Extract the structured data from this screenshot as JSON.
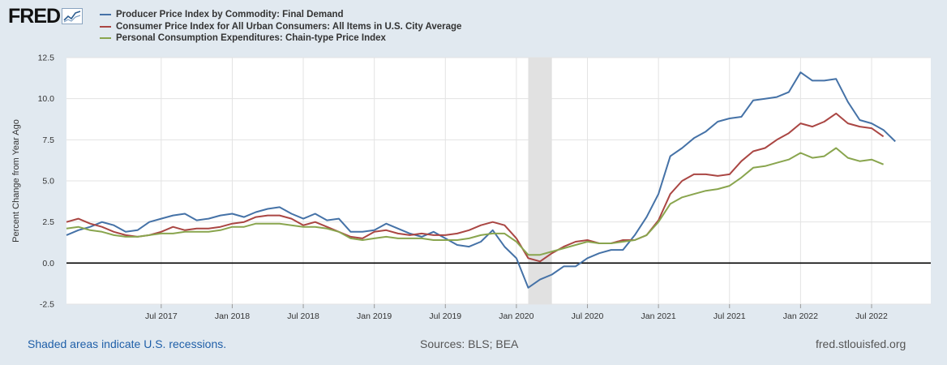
{
  "logo": {
    "text": "FRED"
  },
  "colors": {
    "background": "#e1e9f0",
    "plot_bg": "#ffffff",
    "recession": "#e1e1e1",
    "grid": "#e3e3e3",
    "ppi": "#4572a7",
    "cpi": "#aa4643",
    "pce": "#89a54e",
    "zero_line": "#000000"
  },
  "footer": {
    "note": "Shaded areas indicate U.S. recessions.",
    "sources": "Sources: BLS; BEA",
    "url": "fred.stlouisfed.org"
  },
  "chart_data": {
    "type": "line",
    "title": "",
    "xlabel": "",
    "ylabel": "Percent Change from Year Ago",
    "ylim": [
      -2.5,
      12.5
    ],
    "yticks": [
      "12.5",
      "10.0",
      "7.5",
      "5.0",
      "2.5",
      "0.0",
      "-2.5"
    ],
    "ytick_values": [
      12.5,
      10.0,
      7.5,
      5.0,
      2.5,
      0.0,
      -2.5
    ],
    "x_start": "2016-11",
    "x_end": "2022-12",
    "x_unit": "months since 2016-11",
    "xlim": [
      0,
      73
    ],
    "xticks": [
      {
        "label": "Jul 2017",
        "month": 8
      },
      {
        "label": "Jan 2018",
        "month": 14
      },
      {
        "label": "Jul 2018",
        "month": 20
      },
      {
        "label": "Jan 2019",
        "month": 26
      },
      {
        "label": "Jul 2019",
        "month": 32
      },
      {
        "label": "Jan 2020",
        "month": 38
      },
      {
        "label": "Jul 2020",
        "month": 44
      },
      {
        "label": "Jan 2021",
        "month": 50
      },
      {
        "label": "Jul 2021",
        "month": 56
      },
      {
        "label": "Jan 2022",
        "month": 62
      },
      {
        "label": "Jul 2022",
        "month": 68
      }
    ],
    "recession": {
      "start_month": 39,
      "end_month": 41
    },
    "series": [
      {
        "name": "Producer Price Index by Commodity: Final Demand",
        "key": "ppi",
        "start_month": 0,
        "values": [
          1.7,
          2.0,
          2.2,
          2.5,
          2.3,
          1.9,
          2.0,
          2.5,
          2.7,
          2.9,
          3.0,
          2.6,
          2.7,
          2.9,
          3.0,
          2.8,
          3.1,
          3.3,
          3.4,
          3.0,
          2.7,
          3.0,
          2.6,
          2.7,
          1.9,
          1.9,
          2.0,
          2.4,
          2.1,
          1.8,
          1.6,
          1.9,
          1.5,
          1.1,
          1.0,
          1.3,
          2.0,
          1.0,
          0.3,
          -1.5,
          -1.0,
          -0.7,
          -0.2,
          -0.2,
          0.3,
          0.6,
          0.8,
          0.8,
          1.7,
          2.8,
          4.2,
          6.5,
          7.0,
          7.6,
          8.0,
          8.6,
          8.8,
          8.9,
          9.9,
          10.0,
          10.1,
          10.4,
          11.6,
          11.1,
          11.1,
          11.2,
          9.8,
          8.7,
          8.5,
          8.1,
          7.4
        ]
      },
      {
        "name": "Consumer Price Index for All Urban Consumers: All Items in U.S. City Average",
        "key": "cpi",
        "start_month": 0,
        "values": [
          2.5,
          2.7,
          2.4,
          2.2,
          1.9,
          1.7,
          1.6,
          1.7,
          1.9,
          2.2,
          2.0,
          2.1,
          2.1,
          2.2,
          2.4,
          2.5,
          2.8,
          2.9,
          2.9,
          2.7,
          2.3,
          2.5,
          2.2,
          1.9,
          1.6,
          1.5,
          1.9,
          2.0,
          1.8,
          1.7,
          1.8,
          1.7,
          1.7,
          1.8,
          2.0,
          2.3,
          2.5,
          2.3,
          1.5,
          0.3,
          0.1,
          0.6,
          1.0,
          1.3,
          1.4,
          1.2,
          1.2,
          1.4,
          1.4,
          1.7,
          2.6,
          4.2,
          5.0,
          5.4,
          5.4,
          5.3,
          5.4,
          6.2,
          6.8,
          7.0,
          7.5,
          7.9,
          8.5,
          8.3,
          8.6,
          9.1,
          8.5,
          8.3,
          8.2,
          7.7
        ]
      },
      {
        "name": "Personal Consumption Expenditures: Chain-type Price Index",
        "key": "pce",
        "start_month": 0,
        "values": [
          2.1,
          2.2,
          2.0,
          1.9,
          1.7,
          1.6,
          1.6,
          1.7,
          1.8,
          1.8,
          1.9,
          1.9,
          1.9,
          2.0,
          2.2,
          2.2,
          2.4,
          2.4,
          2.4,
          2.3,
          2.2,
          2.2,
          2.1,
          1.9,
          1.5,
          1.4,
          1.5,
          1.6,
          1.5,
          1.5,
          1.5,
          1.4,
          1.4,
          1.4,
          1.5,
          1.7,
          1.8,
          1.8,
          1.3,
          0.5,
          0.5,
          0.7,
          0.9,
          1.1,
          1.3,
          1.2,
          1.2,
          1.3,
          1.4,
          1.7,
          2.5,
          3.6,
          4.0,
          4.2,
          4.4,
          4.5,
          4.7,
          5.2,
          5.8,
          5.9,
          6.1,
          6.3,
          6.7,
          6.4,
          6.5,
          7.0,
          6.4,
          6.2,
          6.3,
          6.0
        ]
      }
    ]
  }
}
